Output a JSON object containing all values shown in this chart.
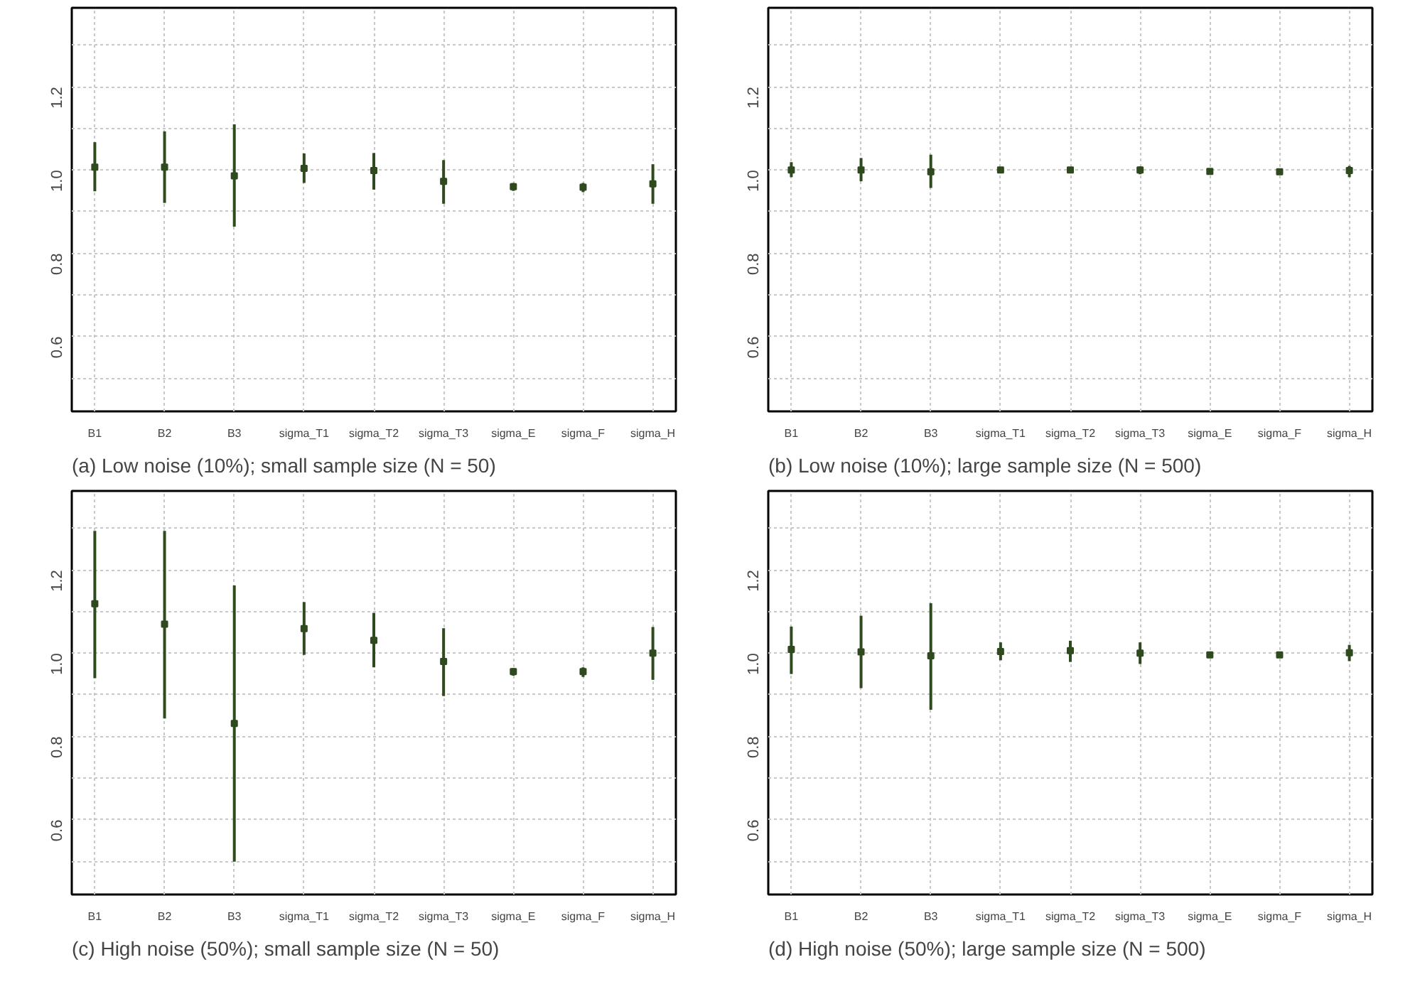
{
  "chart_data": [
    {
      "type": "scatter",
      "title": "(a) Low noise (10%); small sample size (N = 50)",
      "categories": [
        "B1",
        "B2",
        "B3",
        "sigma_T1",
        "sigma_T2",
        "sigma_T3",
        "sigma_E",
        "sigma_F",
        "sigma_H"
      ],
      "series": [
        {
          "color": "#2e4a1e",
          "values": [
            1.007,
            1.007,
            0.986,
            1.004,
            0.999,
            0.973,
            0.96,
            0.959,
            0.967
          ],
          "errors": [
            [
              0.949,
              1.067
            ],
            [
              0.921,
              1.093
            ],
            [
              0.864,
              1.11
            ],
            [
              0.969,
              1.04
            ],
            [
              0.953,
              1.041
            ],
            [
              0.919,
              1.024
            ],
            [
              0.95,
              0.969
            ],
            [
              0.947,
              0.969
            ],
            [
              0.919,
              1.014
            ]
          ]
        }
      ],
      "marker": "square",
      "ylim": [
        0.42,
        1.39
      ],
      "yticks": [
        {
          "value": 0.5,
          "label": null
        },
        0.6,
        {
          "value": 0.7,
          "label": null
        },
        0.8,
        {
          "value": 0.9,
          "label": null
        },
        {
          "value": 1.0,
          "label": "1.0"
        },
        {
          "value": 1.1,
          "label": null
        },
        1.2,
        {
          "value": 1.3,
          "label": null
        }
      ],
      "grid": true
    },
    {
      "type": "scatter",
      "title": "(b) Low noise (10%); large sample size (N = 500)",
      "categories": [
        "B1",
        "B2",
        "B3",
        "sigma_T1",
        "sigma_T2",
        "sigma_T3",
        "sigma_E",
        "sigma_F",
        "sigma_H"
      ],
      "series": [
        {
          "color": "#2e4a1e",
          "values": [
            1.0,
            1.0,
            0.996,
            1.0,
            1.0,
            1.0,
            0.997,
            0.996,
            0.999
          ],
          "errors": [
            [
              0.983,
              1.019
            ],
            [
              0.973,
              1.029
            ],
            [
              0.957,
              1.037
            ],
            [
              0.993,
              1.007
            ],
            [
              0.993,
              1.007
            ],
            [
              0.99,
              1.009
            ],
            [
              0.994,
              1.0
            ],
            [
              0.993,
              0.999
            ],
            [
              0.983,
              1.01
            ]
          ]
        }
      ],
      "marker": "square",
      "ylim": [
        0.42,
        1.39
      ],
      "yticks": [
        {
          "value": 0.5,
          "label": null
        },
        0.6,
        {
          "value": 0.7,
          "label": null
        },
        0.8,
        {
          "value": 0.9,
          "label": null
        },
        {
          "value": 1.0,
          "label": "1.0"
        },
        {
          "value": 1.1,
          "label": null
        },
        1.2,
        {
          "value": 1.3,
          "label": null
        }
      ],
      "grid": true
    },
    {
      "type": "scatter",
      "title": "(c) High noise (50%); small sample size (N = 50)",
      "categories": [
        "B1",
        "B2",
        "B3",
        "sigma_T1",
        "sigma_T2",
        "sigma_T3",
        "sigma_E",
        "sigma_F",
        "sigma_H"
      ],
      "series": [
        {
          "color": "#2e4a1e",
          "values": [
            1.119,
            1.07,
            0.831,
            1.059,
            1.031,
            0.98,
            0.956,
            0.956,
            1.0
          ],
          "errors": [
            [
              0.94,
              1.294
            ],
            [
              0.843,
              1.294
            ],
            [
              0.499,
              1.163
            ],
            [
              0.996,
              1.123
            ],
            [
              0.966,
              1.097
            ],
            [
              0.897,
              1.06
            ],
            [
              0.946,
              0.964
            ],
            [
              0.943,
              0.966
            ],
            [
              0.936,
              1.063
            ]
          ]
        }
      ],
      "marker": "square",
      "ylim": [
        0.42,
        1.39
      ],
      "yticks": [
        {
          "value": 0.5,
          "label": null
        },
        0.6,
        {
          "value": 0.7,
          "label": null
        },
        0.8,
        {
          "value": 0.9,
          "label": null
        },
        {
          "value": 1.0,
          "label": "1.0"
        },
        {
          "value": 1.1,
          "label": null
        },
        1.2,
        {
          "value": 1.3,
          "label": null
        }
      ],
      "grid": true
    },
    {
      "type": "scatter",
      "title": "(d) High noise (50%); large sample size (N = 500)",
      "categories": [
        "B1",
        "B2",
        "B3",
        "sigma_T1",
        "sigma_T2",
        "sigma_T3",
        "sigma_E",
        "sigma_F",
        "sigma_H"
      ],
      "series": [
        {
          "color": "#2e4a1e",
          "values": [
            1.009,
            1.003,
            0.994,
            1.004,
            1.006,
            1.0,
            0.996,
            0.996,
            1.001
          ],
          "errors": [
            [
              0.95,
              1.064
            ],
            [
              0.916,
              1.09
            ],
            [
              0.864,
              1.12
            ],
            [
              0.983,
              1.026
            ],
            [
              0.979,
              1.03
            ],
            [
              0.974,
              1.026
            ],
            [
              0.993,
              0.999
            ],
            [
              0.993,
              0.999
            ],
            [
              0.981,
              1.02
            ]
          ]
        }
      ],
      "marker": "square",
      "ylim": [
        0.42,
        1.39
      ],
      "yticks": [
        {
          "value": 0.5,
          "label": null
        },
        0.6,
        {
          "value": 0.7,
          "label": null
        },
        0.8,
        {
          "value": 0.9,
          "label": null
        },
        {
          "value": 1.0,
          "label": "1.0"
        },
        {
          "value": 1.1,
          "label": null
        },
        1.2,
        {
          "value": 1.3,
          "label": null
        }
      ],
      "grid": true
    }
  ]
}
